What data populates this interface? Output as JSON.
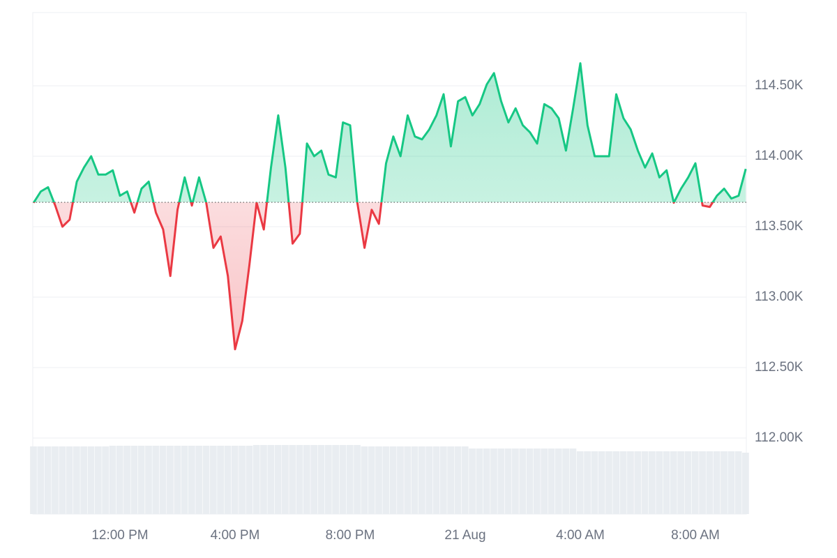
{
  "chart_data": {
    "type": "line",
    "x": [
      9,
      9.25,
      9.5,
      9.75,
      10,
      10.25,
      10.5,
      10.75,
      11,
      11.25,
      11.5,
      11.75,
      12,
      12.25,
      12.5,
      12.75,
      13,
      13.25,
      13.5,
      13.75,
      14,
      14.25,
      14.5,
      14.75,
      15,
      15.25,
      15.5,
      15.75,
      16,
      16.25,
      16.5,
      16.75,
      17,
      17.25,
      17.5,
      17.75,
      18,
      18.25,
      18.5,
      18.75,
      19,
      19.25,
      19.5,
      19.75,
      20,
      20.25,
      20.5,
      20.75,
      21,
      21.25,
      21.5,
      21.75,
      22,
      22.25,
      22.5,
      22.75,
      23,
      23.25,
      23.5,
      23.75,
      24,
      24.25,
      24.5,
      24.75,
      25,
      25.25,
      25.5,
      25.75,
      26,
      26.25,
      26.5,
      26.75,
      27,
      27.25,
      27.5,
      27.75,
      28,
      28.25,
      28.5,
      28.75,
      29,
      29.25,
      29.5,
      29.75,
      30,
      30.25,
      30.5,
      30.75,
      31,
      31.25,
      31.5,
      31.75,
      32,
      32.25,
      32.5,
      32.75,
      33,
      33.25,
      33.5,
      33.75
    ],
    "series": [
      {
        "values": [
          113670,
          113750,
          113780,
          113650,
          113500,
          113550,
          113820,
          113920,
          114000,
          113870,
          113870,
          113900,
          113720,
          113750,
          113600,
          113770,
          113820,
          113600,
          113480,
          113150,
          113620,
          113850,
          113650,
          113850,
          113670,
          113350,
          113430,
          113150,
          112630,
          112830,
          113230,
          113670,
          113480,
          113920,
          114290,
          113920,
          113380,
          113450,
          114090,
          114000,
          114040,
          113870,
          113850,
          114240,
          114220,
          113670,
          113350,
          113620,
          113520,
          113950,
          114140,
          114000,
          114290,
          114140,
          114120,
          114190,
          114290,
          114440,
          114070,
          114390,
          114420,
          114290,
          114370,
          114510,
          114590,
          114390,
          114240,
          114340,
          114220,
          114170,
          114090,
          114370,
          114340,
          114270,
          114040,
          114340,
          114660,
          114220,
          114000,
          114000,
          114000,
          114440,
          114270,
          114190,
          114040,
          113920,
          114020,
          113850,
          113900,
          113670,
          113770,
          113850,
          113950,
          113650,
          113640,
          113720,
          113770,
          113700,
          113720,
          113910
        ]
      }
    ],
    "baseline": 113673,
    "up_color": "#16c784",
    "down_color": "#ea3943",
    "volume": {
      "values": [
        97,
        97,
        97,
        97,
        97,
        97,
        97,
        97,
        97,
        97,
        97,
        98,
        98,
        98,
        98,
        98,
        98,
        98,
        98,
        98,
        98,
        98,
        98,
        98,
        98,
        98,
        98,
        98,
        98,
        98,
        98,
        99,
        99,
        99,
        99,
        99,
        99,
        99,
        99,
        99,
        99,
        99,
        99,
        99,
        99,
        99,
        97,
        97,
        97,
        97,
        97,
        97,
        97,
        97,
        97,
        97,
        97,
        97,
        97,
        97,
        97,
        94,
        94,
        94,
        94,
        94,
        94,
        94,
        94,
        94,
        94,
        94,
        94,
        94,
        94,
        94,
        90,
        90,
        90,
        90,
        90,
        90,
        90,
        90,
        90,
        90,
        90,
        90,
        90,
        90,
        90,
        90,
        90,
        90,
        90,
        90,
        90,
        90,
        90,
        88
      ],
      "ylim": [
        0,
        100
      ],
      "color": "#e9edf1"
    },
    "xlim": [
      8.97,
      33.77
    ],
    "ylim": [
      111460,
      115020
    ],
    "xticks": [
      {
        "value": 12,
        "label": "12:00 PM"
      },
      {
        "value": 16,
        "label": "4:00 PM"
      },
      {
        "value": 20,
        "label": "8:00 PM"
      },
      {
        "value": 24,
        "label": "21 Aug"
      },
      {
        "value": 28,
        "label": "4:00 AM"
      },
      {
        "value": 32,
        "label": "8:00 AM"
      }
    ],
    "yticks": [
      {
        "value": 112000,
        "label": "112.00K"
      },
      {
        "value": 112500,
        "label": "112.50K"
      },
      {
        "value": 113000,
        "label": "113.00K"
      },
      {
        "value": 113500,
        "label": "113.50K"
      },
      {
        "value": 114000,
        "label": "114.00K"
      },
      {
        "value": 114500,
        "label": "114.50K"
      }
    ],
    "grid": true
  }
}
